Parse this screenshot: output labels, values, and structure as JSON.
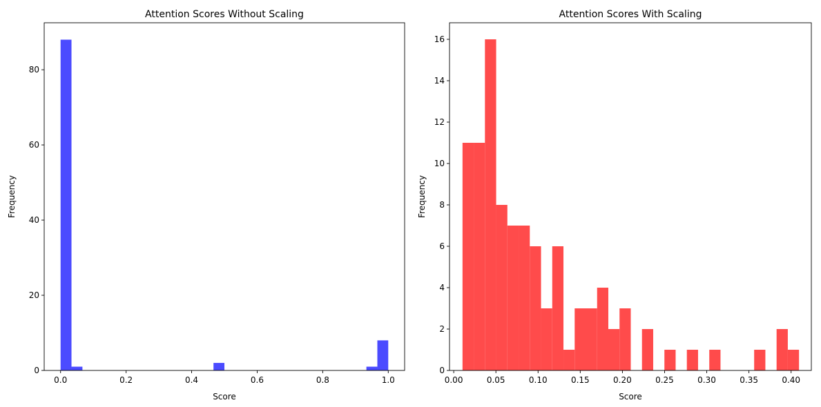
{
  "chart_data": [
    {
      "type": "bar",
      "title": "Attention Scores Without Scaling",
      "xlabel": "Score",
      "ylabel": "Frequency",
      "xlim": [
        -0.05,
        1.05
      ],
      "ylim": [
        0,
        92.5
      ],
      "xticks": [
        0.0,
        0.2,
        0.4,
        0.6,
        0.8,
        1.0
      ],
      "xtick_labels": [
        "0.0",
        "0.2",
        "0.4",
        "0.6",
        "0.8",
        "1.0"
      ],
      "yticks": [
        0,
        20,
        40,
        60,
        80
      ],
      "ytick_labels": [
        "0",
        "20",
        "40",
        "60",
        "80"
      ],
      "bin_edges": [
        0.0,
        0.0333,
        0.0667,
        0.1,
        0.1333,
        0.1667,
        0.2,
        0.2333,
        0.2667,
        0.3,
        0.3333,
        0.3667,
        0.4,
        0.4333,
        0.4667,
        0.5,
        0.5333,
        0.5667,
        0.6,
        0.6333,
        0.6667,
        0.7,
        0.7333,
        0.7667,
        0.8,
        0.8333,
        0.8667,
        0.9,
        0.9333,
        0.9667,
        1.0
      ],
      "values": [
        88,
        1,
        0,
        0,
        0,
        0,
        0,
        0,
        0,
        0,
        0,
        0,
        0,
        0,
        2,
        0,
        0,
        0,
        0,
        0,
        0,
        0,
        0,
        0,
        0,
        0,
        0,
        0,
        1,
        8
      ],
      "color": "#4b4bff",
      "grid": false
    },
    {
      "type": "bar",
      "title": "Attention Scores With Scaling",
      "xlabel": "Score",
      "ylabel": "Frequency",
      "xlim": [
        -0.005,
        0.424
      ],
      "ylim": [
        0,
        16.8
      ],
      "xticks": [
        0.0,
        0.05,
        0.1,
        0.15,
        0.2,
        0.25,
        0.3,
        0.35,
        0.4
      ],
      "xtick_labels": [
        "0.00",
        "0.05",
        "0.10",
        "0.15",
        "0.20",
        "0.25",
        "0.30",
        "0.35",
        "0.40"
      ],
      "yticks": [
        0,
        2,
        4,
        6,
        8,
        10,
        12,
        14,
        16
      ],
      "ytick_labels": [
        "0",
        "2",
        "4",
        "6",
        "8",
        "10",
        "12",
        "14",
        "16"
      ],
      "bin_edges": [
        0.0104,
        0.0237,
        0.037,
        0.0503,
        0.0636,
        0.0769,
        0.0902,
        0.1035,
        0.1168,
        0.1301,
        0.1434,
        0.1567,
        0.17,
        0.1833,
        0.1966,
        0.2099,
        0.2232,
        0.2365,
        0.2498,
        0.2631,
        0.2764,
        0.2897,
        0.303,
        0.3163,
        0.3296,
        0.3429,
        0.3562,
        0.3695,
        0.3828,
        0.3961,
        0.4094
      ],
      "values": [
        11,
        11,
        16,
        8,
        7,
        7,
        6,
        3,
        6,
        1,
        3,
        3,
        4,
        2,
        3,
        0,
        2,
        0,
        1,
        0,
        1,
        0,
        1,
        0,
        0,
        0,
        1,
        0,
        2,
        1
      ],
      "color": "#ff4b4b",
      "grid": false
    }
  ]
}
